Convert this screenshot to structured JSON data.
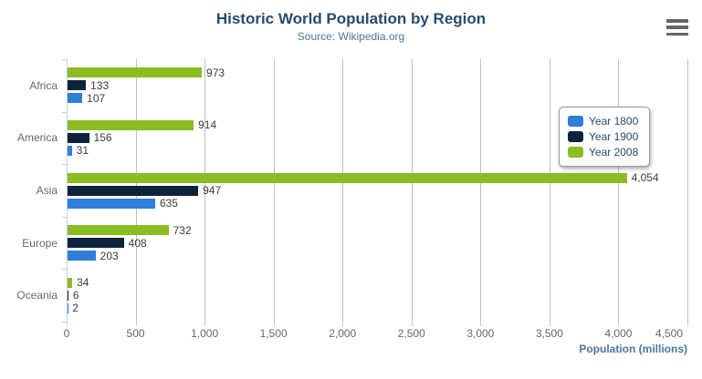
{
  "chart": {
    "title": "Historic World Population by Region",
    "subtitle": "Source: Wikipedia.org"
  },
  "icons": {
    "context_menu": "hamburger-icon"
  },
  "chart_data": {
    "type": "bar",
    "title": "Historic World Population by Region",
    "subtitle": "Source: Wikipedia.org",
    "categories": [
      "Africa",
      "America",
      "Asia",
      "Europe",
      "Oceania"
    ],
    "series": [
      {
        "name": "Year 1800",
        "color": "#2f7ed8",
        "values": [
          107,
          31,
          635,
          203,
          2
        ]
      },
      {
        "name": "Year 1900",
        "color": "#0d233a",
        "values": [
          133,
          156,
          947,
          408,
          6
        ]
      },
      {
        "name": "Year 2008",
        "color": "#8bbc21",
        "values": [
          973,
          914,
          4054,
          732,
          34
        ]
      }
    ],
    "bar_order_top_to_bottom": [
      "Year 2008",
      "Year 1900",
      "Year 1800"
    ],
    "xlabel": "Population (millions)",
    "ylabel": "",
    "xlim": [
      0,
      4500
    ],
    "xticks": [
      0,
      500,
      1000,
      1500,
      2000,
      2500,
      3000,
      3500,
      4000,
      4500
    ],
    "grid": true,
    "data_labels": true,
    "legend_position": "top-right"
  },
  "colors": {
    "title": "#274b6d",
    "subtitle": "#4d759e",
    "axis_title": "#4d759e",
    "tick_label": "#666666",
    "category_label": "#666666",
    "data_label": "#3c3c3c",
    "gridline": "#c0c0c0",
    "axis_line": "#c0d0e0",
    "legend_text": "#274b6d",
    "menu_icon": "#666666"
  }
}
